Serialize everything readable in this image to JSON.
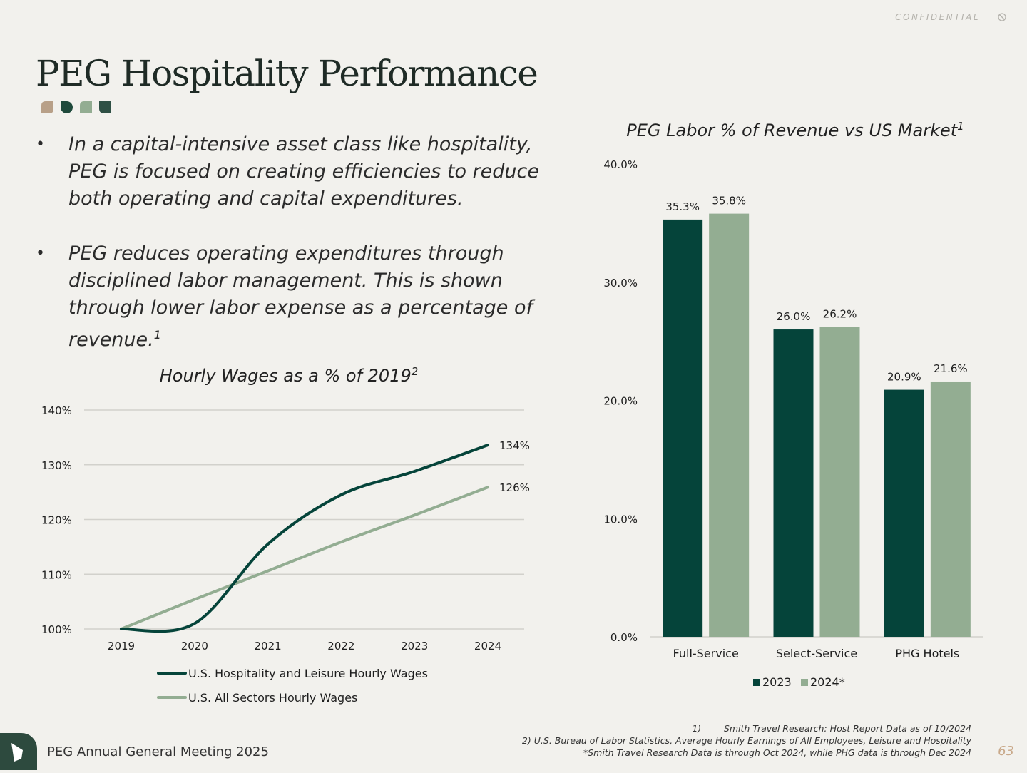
{
  "header": {
    "confidential": "CONFIDENTIAL",
    "title": "PEG Hospitality Performance"
  },
  "colors": {
    "dark_green": "#05443a",
    "sage": "#93ad92",
    "tan": "#b8a088",
    "background": "#f2f1ed"
  },
  "bullets": [
    {
      "text": "In a capital-intensive asset class like hospitality, PEG is focused on creating efficiencies to reduce both operating and capital expenditures.",
      "sup": ""
    },
    {
      "text": " PEG reduces operating expenditures  through disciplined labor management. This is shown through lower labor expense as a percentage of revenue.",
      "sup": "1"
    }
  ],
  "chart_data": [
    {
      "type": "line",
      "title": "Hourly Wages as a % of 2019",
      "title_sup": "2",
      "x": [
        "2019",
        "2020",
        "2021",
        "2022",
        "2023",
        "2024"
      ],
      "ylim": [
        100,
        140
      ],
      "yticks": [
        "100%",
        "110%",
        "120%",
        "130%",
        "140%"
      ],
      "grid": true,
      "series": [
        {
          "name": "U.S. Hospitality and Leisure Hourly Wages",
          "values": [
            100,
            101,
            115.5,
            124.5,
            128.8,
            133.6
          ],
          "end_label": "134%",
          "color": "#05443a"
        },
        {
          "name": "U.S. All Sectors Hourly Wages",
          "values": [
            100,
            105.4,
            110.6,
            115.9,
            120.8,
            125.9
          ],
          "end_label": "126%",
          "color": "#93ad92"
        }
      ],
      "legend_position": "bottom"
    },
    {
      "type": "bar",
      "title": "PEG Labor % of Revenue vs US Market",
      "title_sup": "1",
      "categories": [
        "Full-Service",
        "Select-Service",
        "PHG Hotels"
      ],
      "ylim": [
        0,
        40
      ],
      "yticks": [
        "0.0%",
        "10.0%",
        "20.0%",
        "30.0%",
        "40.0%"
      ],
      "series": [
        {
          "name": "2023",
          "values": [
            35.3,
            26.0,
            20.9
          ],
          "labels": [
            "35.3%",
            "26.0%",
            "20.9%"
          ],
          "color": "#05443a"
        },
        {
          "name": "2024*",
          "values": [
            35.8,
            26.2,
            21.6
          ],
          "labels": [
            "35.8%",
            "26.2%",
            "21.6%"
          ],
          "color": "#93ad92"
        }
      ],
      "legend_position": "bottom"
    }
  ],
  "footer": {
    "meeting": "PEG Annual General Meeting 2025",
    "notes": [
      "1)        Smith Travel Research: Host Report Data as of 10/2024",
      "2) U.S. Bureau of Labor Statistics, Average Hourly Earnings of All Employees, Leisure and Hospitality",
      "*Smith Travel Research Data is through Oct 2024, while PHG data is through Dec 2024"
    ],
    "page_number": "63"
  }
}
